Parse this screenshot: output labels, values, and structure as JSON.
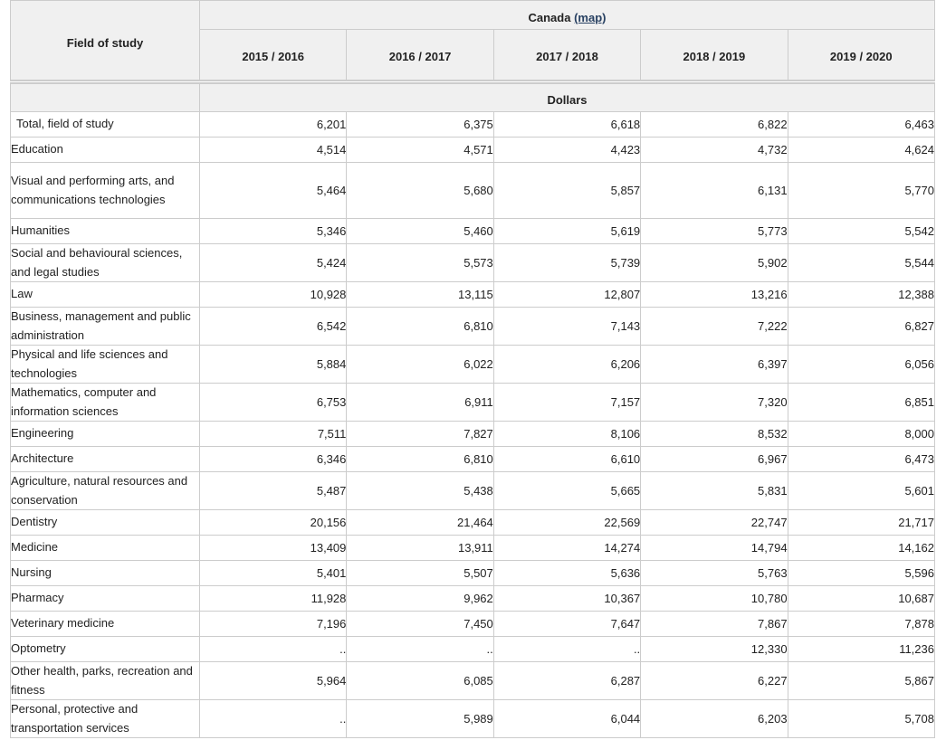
{
  "table": {
    "corner_label": "Field of study",
    "geo_label": "Canada",
    "map_link": "(map)",
    "units_label": "Dollars",
    "years": [
      "2015 / 2016",
      "2016 / 2017",
      "2017 / 2018",
      "2018 / 2019",
      "2019 / 2020"
    ],
    "rows": [
      {
        "field": "Total, field of study",
        "values": [
          "6,201",
          "6,375",
          "6,618",
          "6,822",
          "6,463"
        ]
      },
      {
        "field": "Education",
        "values": [
          "4,514",
          "4,571",
          "4,423",
          "4,732",
          "4,624"
        ]
      },
      {
        "field": "Visual and performing arts, and communications technologies",
        "values": [
          "5,464",
          "5,680",
          "5,857",
          "6,131",
          "5,770"
        ]
      },
      {
        "field": "Humanities",
        "values": [
          "5,346",
          "5,460",
          "5,619",
          "5,773",
          "5,542"
        ]
      },
      {
        "field": "Social and behavioural sciences, and legal studies",
        "values": [
          "5,424",
          "5,573",
          "5,739",
          "5,902",
          "5,544"
        ]
      },
      {
        "field": "Law",
        "values": [
          "10,928",
          "13,115",
          "12,807",
          "13,216",
          "12,388"
        ]
      },
      {
        "field": "Business, management and public administration",
        "values": [
          "6,542",
          "6,810",
          "7,143",
          "7,222",
          "6,827"
        ]
      },
      {
        "field": "Physical and life sciences and technologies",
        "values": [
          "5,884",
          "6,022",
          "6,206",
          "6,397",
          "6,056"
        ]
      },
      {
        "field": "Mathematics, computer and information sciences",
        "values": [
          "6,753",
          "6,911",
          "7,157",
          "7,320",
          "6,851"
        ]
      },
      {
        "field": "Engineering",
        "values": [
          "7,511",
          "7,827",
          "8,106",
          "8,532",
          "8,000"
        ]
      },
      {
        "field": "Architecture",
        "values": [
          "6,346",
          "6,810",
          "6,610",
          "6,967",
          "6,473"
        ]
      },
      {
        "field": "Agriculture, natural resources and conservation",
        "values": [
          "5,487",
          "5,438",
          "5,665",
          "5,831",
          "5,601"
        ]
      },
      {
        "field": "Dentistry",
        "values": [
          "20,156",
          "21,464",
          "22,569",
          "22,747",
          "21,717"
        ]
      },
      {
        "field": "Medicine",
        "values": [
          "13,409",
          "13,911",
          "14,274",
          "14,794",
          "14,162"
        ]
      },
      {
        "field": "Nursing",
        "values": [
          "5,401",
          "5,507",
          "5,636",
          "5,763",
          "5,596"
        ]
      },
      {
        "field": "Pharmacy",
        "values": [
          "11,928",
          "9,962",
          "10,367",
          "10,780",
          "10,687"
        ]
      },
      {
        "field": "Veterinary medicine",
        "values": [
          "7,196",
          "7,450",
          "7,647",
          "7,867",
          "7,878"
        ]
      },
      {
        "field": "Optometry",
        "values": [
          "..",
          "..",
          "..",
          "12,330",
          "11,236"
        ]
      },
      {
        "field": "Other health, parks, recreation and fitness",
        "values": [
          "5,964",
          "6,085",
          "6,287",
          "6,227",
          "5,867"
        ]
      },
      {
        "field": "Personal, protective and transportation services",
        "values": [
          "..",
          "5,989",
          "6,044",
          "6,203",
          "5,708"
        ]
      }
    ]
  }
}
